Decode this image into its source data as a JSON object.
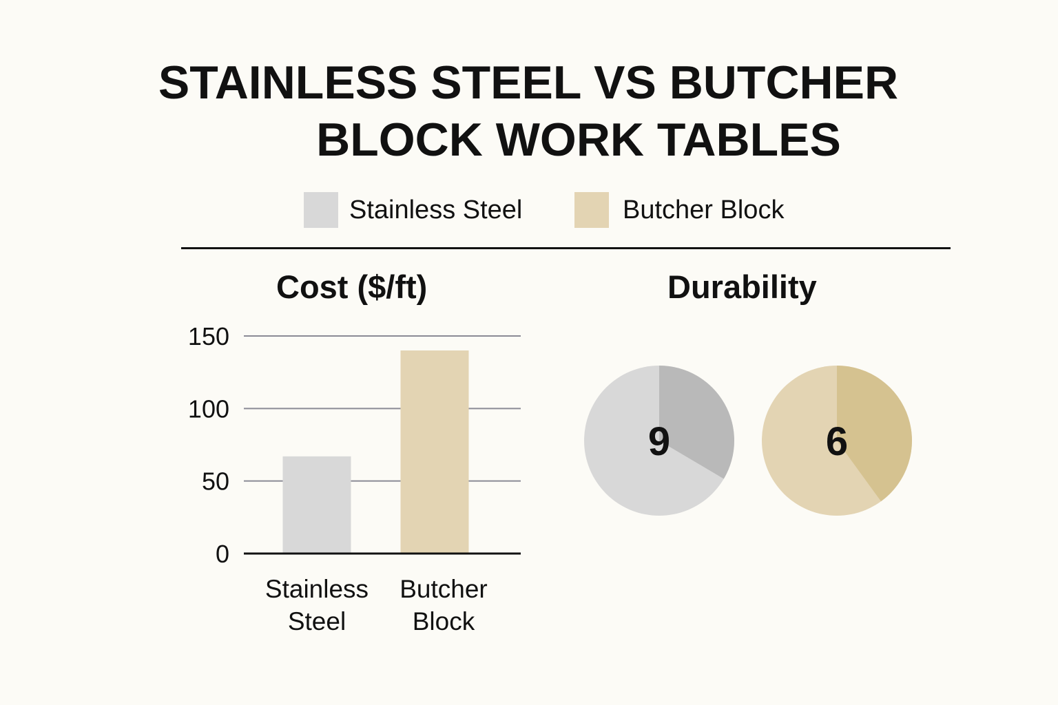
{
  "title": {
    "line1": "STAINLESS STEEL VS BUTCHER",
    "line2": "BLOCK WORK TABLES"
  },
  "colors": {
    "stainless": "#d8d8d8",
    "stainless_dark": "#b9b9b9",
    "butcher": "#e3d4b3",
    "butcher_dark": "#d5c290",
    "text": "#111111",
    "grid": "#8a8a95",
    "background": "#fcfbf6"
  },
  "legend": [
    {
      "label": "Stainless Steel",
      "color": "#d8d8d8"
    },
    {
      "label": "Butcher Block",
      "color": "#e3d4b3"
    }
  ],
  "chart_data": [
    {
      "type": "bar",
      "title": "Cost ($/ft)",
      "categories": [
        [
          "Stainless",
          "Steel"
        ],
        [
          "Butcher",
          "Block"
        ]
      ],
      "values": [
        67,
        140
      ],
      "yticks": [
        "150",
        "100",
        "50",
        "0"
      ],
      "ylim": [
        0,
        150
      ],
      "grid": true
    },
    {
      "type": "pie",
      "title": "Durability",
      "max": 10,
      "items": [
        {
          "name": "Stainless Steel",
          "value": 9,
          "label": "9"
        },
        {
          "name": "Butcher Block",
          "value": 6,
          "label": "6"
        }
      ]
    }
  ]
}
